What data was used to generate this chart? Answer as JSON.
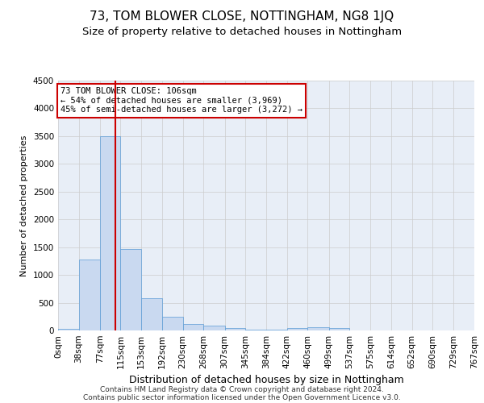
{
  "title": "73, TOM BLOWER CLOSE, NOTTINGHAM, NG8 1JQ",
  "subtitle": "Size of property relative to detached houses in Nottingham",
  "xlabel": "Distribution of detached houses by size in Nottingham",
  "ylabel": "Number of detached properties",
  "bin_edges": [
    0,
    38,
    77,
    115,
    153,
    192,
    230,
    268,
    307,
    345,
    384,
    422,
    460,
    499,
    537,
    575,
    614,
    652,
    690,
    729,
    767
  ],
  "bar_heights": [
    30,
    1280,
    3500,
    1470,
    580,
    240,
    110,
    80,
    50,
    20,
    20,
    40,
    60,
    50,
    5,
    5,
    5,
    5,
    5,
    5
  ],
  "bar_color": "#c9d9f0",
  "bar_edge_color": "#5b9bd5",
  "property_size": 106,
  "vline_color": "#cc0000",
  "annotation_line1": "73 TOM BLOWER CLOSE: 106sqm",
  "annotation_line2": "← 54% of detached houses are smaller (3,969)",
  "annotation_line3": "45% of semi-detached houses are larger (3,272) →",
  "annotation_box_color": "#ffffff",
  "annotation_box_edge": "#cc0000",
  "ylim": [
    0,
    4500
  ],
  "yticks": [
    0,
    500,
    1000,
    1500,
    2000,
    2500,
    3000,
    3500,
    4000,
    4500
  ],
  "grid_color": "#cccccc",
  "bg_color": "#e8eef7",
  "footer_line1": "Contains HM Land Registry data © Crown copyright and database right 2024.",
  "footer_line2": "Contains public sector information licensed under the Open Government Licence v3.0.",
  "title_fontsize": 11,
  "subtitle_fontsize": 9.5,
  "xlabel_fontsize": 9,
  "ylabel_fontsize": 8,
  "tick_fontsize": 7.5,
  "annotation_fontsize": 7.5,
  "footer_fontsize": 6.5
}
